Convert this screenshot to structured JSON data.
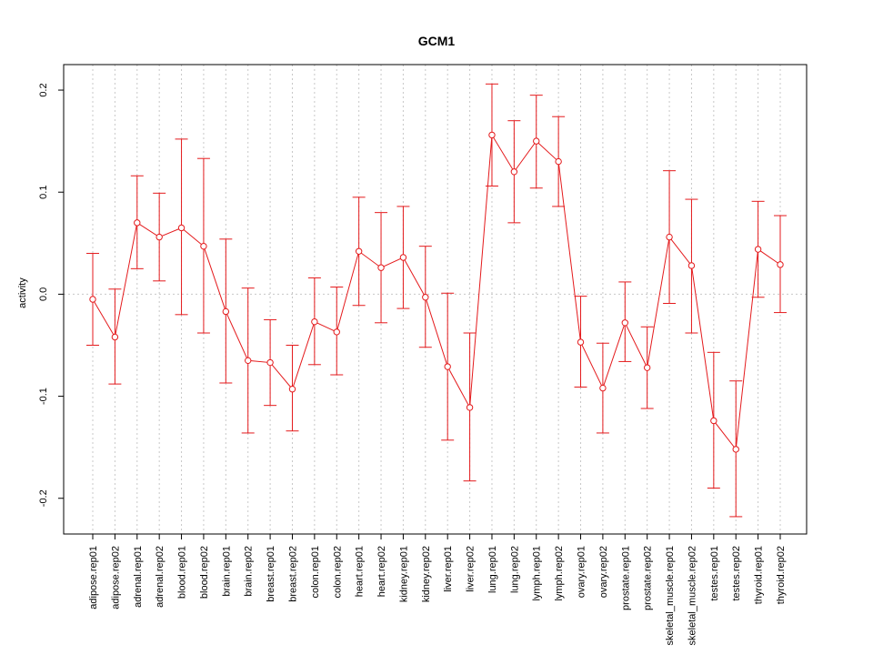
{
  "chart_data": {
    "type": "line",
    "title": "GCM1",
    "xlabel": "",
    "ylabel": "activity",
    "ylim": [
      -0.235,
      0.225
    ],
    "yticks": [
      -0.2,
      -0.1,
      0.0,
      0.1,
      0.2
    ],
    "ytick_labels": [
      "-0.2",
      "-0.1",
      "0.0",
      "0.1",
      "0.2"
    ],
    "grid": true,
    "color": "#e41a1c",
    "categories": [
      "adipose.rep01",
      "adipose.rep02",
      "adrenal.rep01",
      "adrenal.rep02",
      "blood.rep01",
      "blood.rep02",
      "brain.rep01",
      "brain.rep02",
      "breast.rep01",
      "breast.rep02",
      "colon.rep01",
      "colon.rep02",
      "heart.rep01",
      "heart.rep02",
      "kidney.rep01",
      "kidney.rep02",
      "liver.rep01",
      "liver.rep02",
      "lung.rep01",
      "lung.rep02",
      "lymph.rep01",
      "lymph.rep02",
      "ovary.rep01",
      "ovary.rep02",
      "prostate.rep01",
      "prostate.rep02",
      "skeletal_muscle.rep01",
      "skeletal_muscle.rep02",
      "testes.rep01",
      "testes.rep02",
      "thyroid.rep01",
      "thyroid.rep02"
    ],
    "values": [
      -0.005,
      -0.042,
      0.07,
      0.056,
      0.065,
      0.047,
      -0.017,
      -0.065,
      -0.067,
      -0.093,
      -0.027,
      -0.037,
      0.042,
      0.026,
      0.036,
      -0.003,
      -0.071,
      -0.111,
      0.156,
      0.12,
      0.15,
      0.13,
      -0.047,
      -0.092,
      -0.028,
      -0.072,
      0.056,
      0.028,
      -0.124,
      -0.152,
      0.044,
      0.029
    ],
    "upper": [
      0.04,
      0.005,
      0.116,
      0.099,
      0.152,
      0.133,
      0.054,
      0.006,
      -0.025,
      -0.05,
      0.016,
      0.007,
      0.095,
      0.08,
      0.086,
      0.047,
      0.001,
      -0.038,
      0.206,
      0.17,
      0.195,
      0.174,
      -0.002,
      -0.048,
      0.012,
      -0.032,
      0.121,
      0.093,
      -0.057,
      -0.085,
      0.091,
      0.077
    ],
    "lower": [
      -0.05,
      -0.088,
      0.025,
      0.013,
      -0.02,
      -0.038,
      -0.087,
      -0.136,
      -0.109,
      -0.134,
      -0.069,
      -0.079,
      -0.011,
      -0.028,
      -0.014,
      -0.052,
      -0.143,
      -0.183,
      0.106,
      0.07,
      0.104,
      0.086,
      -0.091,
      -0.136,
      -0.066,
      -0.112,
      -0.009,
      -0.038,
      -0.19,
      -0.218,
      -0.003,
      -0.018
    ]
  }
}
